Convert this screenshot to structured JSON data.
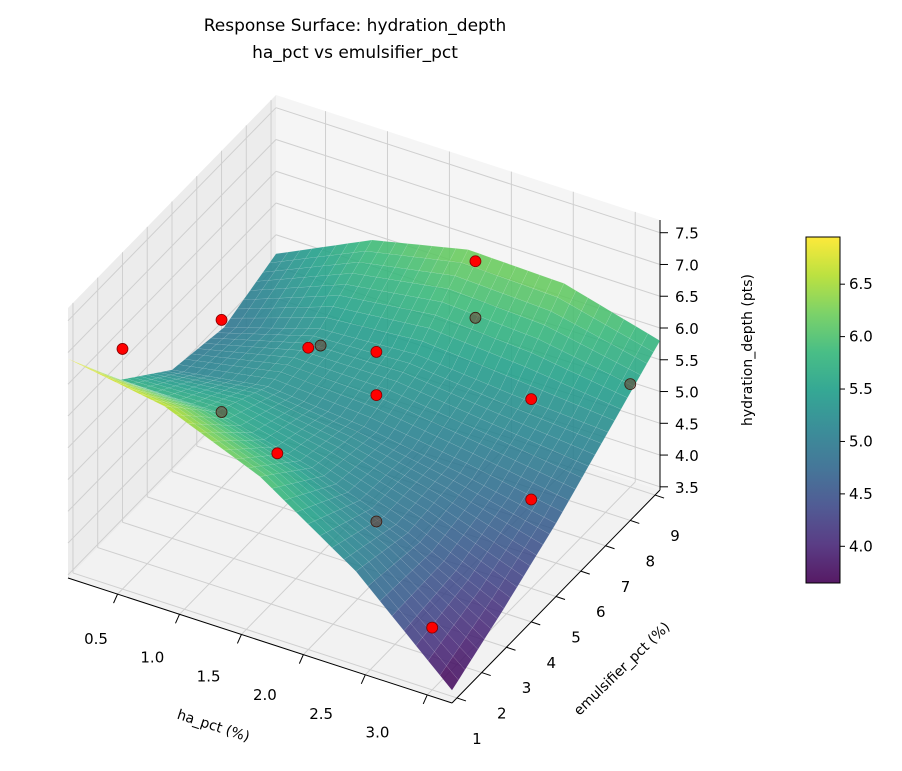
{
  "chart_data": {
    "type": "surface",
    "title": [
      "Response Surface: hydration_depth",
      "ha_pct vs emulsifier_pct"
    ],
    "xlabel": "ha_pct (%)",
    "ylabel": "emulsifier_pct (%)",
    "zlabel": "hydration_depth (pts)",
    "xlim": [
      0.1,
      3.2
    ],
    "ylim": [
      0.8,
      9.2
    ],
    "zlim": [
      3.45,
      7.7
    ],
    "xticks": [
      "0.5",
      "1.0",
      "1.5",
      "2.0",
      "2.5",
      "3.0"
    ],
    "yticks": [
      "1",
      "2",
      "3",
      "4",
      "5",
      "6",
      "7",
      "8",
      "9"
    ],
    "zticks": [
      "3.5",
      "4.0",
      "4.5",
      "5.0",
      "5.5",
      "6.0",
      "6.5",
      "7.0",
      "7.5"
    ],
    "grid": true,
    "colormap": "viridis",
    "colorbar": {
      "range": [
        3.65,
        6.95
      ],
      "ticks": [
        "4.0",
        "4.5",
        "5.0",
        "5.5",
        "6.0",
        "6.5"
      ],
      "placement": "right"
    },
    "surface": {
      "x": [
        0.1,
        0.875,
        1.65,
        2.425,
        3.2
      ],
      "y": [
        0.8,
        2.9,
        5.0,
        7.1,
        9.2
      ],
      "z": [
        [
          6.9,
          6.65,
          6.03,
          5.03,
          3.65
        ],
        [
          5.73,
          5.72,
          5.33,
          4.8,
          4.1
        ],
        [
          5.05,
          5.28,
          5.14,
          4.9,
          4.6
        ],
        [
          4.88,
          5.35,
          5.44,
          5.3,
          5.2
        ],
        [
          5.2,
          5.91,
          6.25,
          6.21,
          5.8
        ]
      ]
    },
    "points": [
      {
        "x": 0.5,
        "y": 1,
        "z": 7.23
      },
      {
        "x": 0.5,
        "y": 5,
        "z": 6.09
      },
      {
        "x": 0.5,
        "y": 5,
        "z": 4.64
      },
      {
        "x": 1.0,
        "y": 6,
        "z": 5.57
      },
      {
        "x": 0.5,
        "y": 9,
        "z": 4.09
      },
      {
        "x": 1.75,
        "y": 1,
        "z": 6.38
      },
      {
        "x": 1.75,
        "y": 5,
        "z": 6.38
      },
      {
        "x": 1.75,
        "y": 5,
        "z": 5.7
      },
      {
        "x": 1.75,
        "y": 5,
        "z": 3.71
      },
      {
        "x": 1.75,
        "y": 9,
        "z": 6.21
      },
      {
        "x": 1.75,
        "y": 9,
        "z": 5.32
      },
      {
        "x": 3.0,
        "y": 1,
        "z": 4.43
      },
      {
        "x": 3.0,
        "y": 5,
        "z": 4.85
      },
      {
        "x": 3.0,
        "y": 5,
        "z": 6.43
      },
      {
        "x": 3.0,
        "y": 9,
        "z": 5.07
      }
    ],
    "point_color": "#ff0000"
  }
}
